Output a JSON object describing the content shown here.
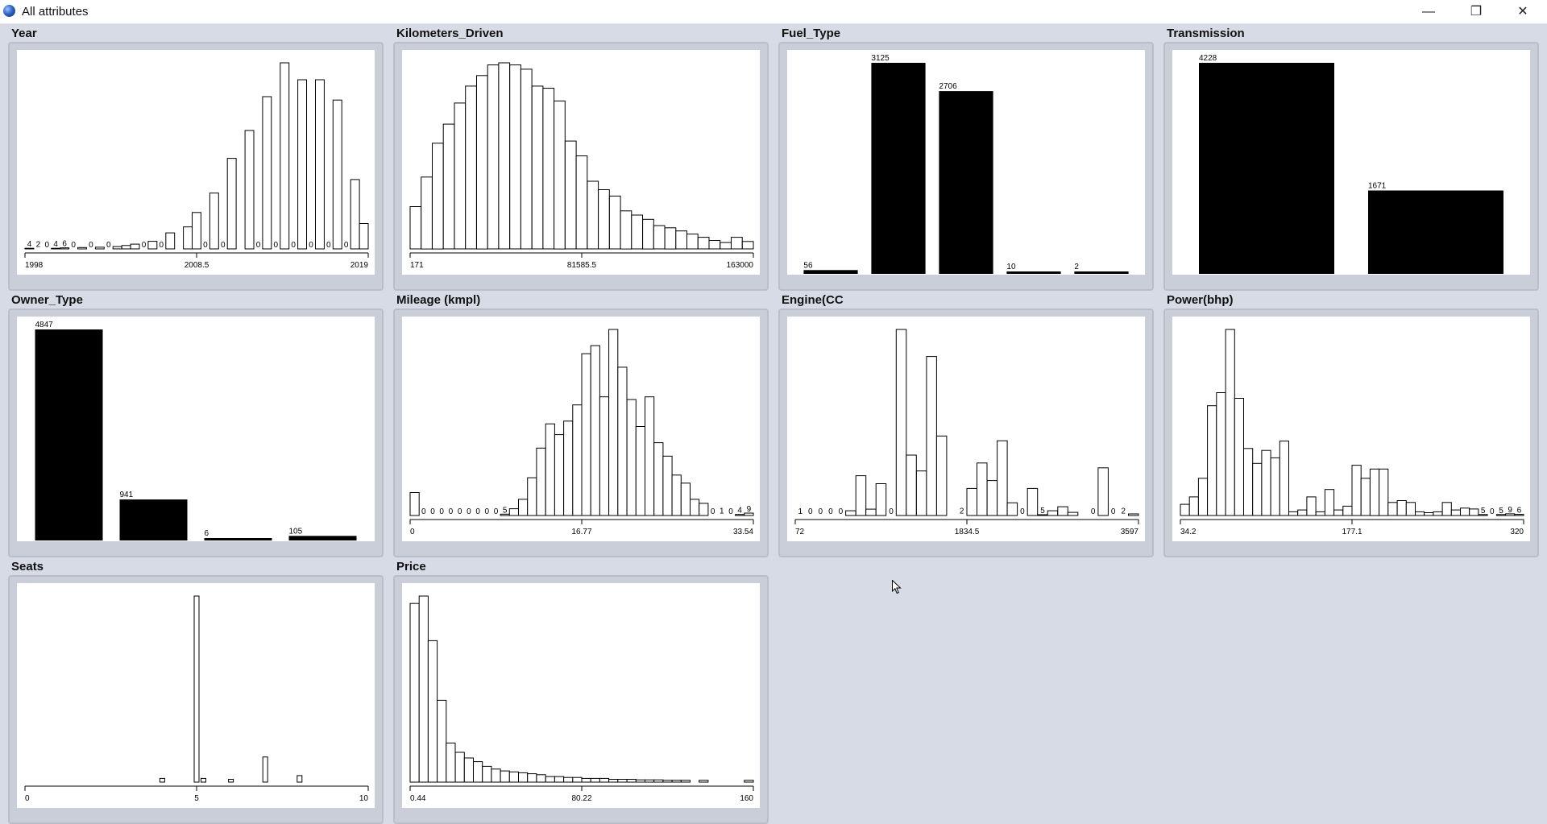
{
  "window": {
    "title": "All attributes",
    "buttons": {
      "minimize": "—",
      "maximize": "❐",
      "close": "✕"
    }
  },
  "chart_data": [
    {
      "name": "Year",
      "type": "histogram",
      "style": "outline",
      "xticks": [
        "1998",
        "2008.5",
        "2019"
      ],
      "values": [
        4,
        2,
        0,
        4,
        6,
        0,
        8,
        0,
        10,
        0,
        14,
        20,
        28,
        0,
        45,
        0,
        95,
        0,
        130,
        215,
        0,
        330,
        0,
        535,
        0,
        700,
        0,
        900,
        0,
        1100,
        0,
        1000,
        0,
        1000,
        0,
        880,
        0,
        410,
        150
      ],
      "labels": [
        "4",
        "2",
        "0",
        "4",
        "6",
        "0",
        "",
        "0",
        "",
        "0",
        "",
        "",
        "",
        "0",
        "",
        "0",
        "",
        "",
        "",
        "",
        "0",
        "",
        "0",
        "",
        "",
        "",
        "0",
        "",
        "0",
        "",
        "0",
        "",
        "0",
        "",
        "0",
        "",
        "0",
        "",
        ""
      ],
      "ymax": 1100
    },
    {
      "name": "Kilometers_Driven",
      "type": "histogram",
      "style": "outline",
      "xticks": [
        "171",
        "81585.5",
        "163000"
      ],
      "values": [
        200,
        340,
        500,
        590,
        690,
        770,
        820,
        870,
        880,
        870,
        850,
        770,
        760,
        700,
        510,
        440,
        320,
        280,
        250,
        180,
        160,
        140,
        110,
        100,
        85,
        70,
        55,
        40,
        30,
        55,
        35
      ],
      "ymax": 880
    },
    {
      "name": "Fuel_Type",
      "type": "bar",
      "style": "solid",
      "values": [
        56,
        3125,
        2706,
        10,
        2
      ],
      "labels": [
        "56",
        "3125",
        "2706",
        "10",
        "2"
      ],
      "ymax": 3125
    },
    {
      "name": "Transmission",
      "type": "bar",
      "style": "solid",
      "values": [
        4228,
        1671
      ],
      "labels": [
        "4228",
        "1671"
      ],
      "ymax": 4228
    },
    {
      "name": "Owner_Type",
      "type": "bar",
      "style": "solid",
      "values": [
        4847,
        941,
        6,
        105
      ],
      "labels": [
        "4847",
        "941",
        "6",
        "105"
      ],
      "ymax": 4847
    },
    {
      "name": "Mileage (kmpl)",
      "type": "histogram",
      "style": "outline",
      "xticks": [
        "0",
        "16.77",
        "33.54"
      ],
      "values": [
        85,
        0,
        0,
        0,
        0,
        0,
        0,
        0,
        0,
        0,
        5,
        25,
        60,
        140,
        250,
        340,
        300,
        350,
        410,
        600,
        630,
        440,
        690,
        550,
        430,
        330,
        440,
        270,
        220,
        150,
        120,
        60,
        45,
        0,
        1,
        0,
        4,
        9
      ],
      "labels": [
        "",
        "0",
        "0",
        "0",
        "0",
        "0",
        "0",
        "0",
        "0",
        "0",
        "5",
        "",
        "",
        "",
        "",
        "",
        "",
        "",
        "",
        "",
        "",
        "",
        "",
        "",
        "",
        "",
        "",
        "",
        "",
        "",
        "",
        "",
        "",
        "0",
        "1",
        "0",
        "4",
        "9"
      ],
      "ymax": 690
    },
    {
      "name": "Engine(CC",
      "type": "histogram",
      "style": "outline",
      "xticks": [
        "72",
        "1834.5",
        "3597"
      ],
      "values": [
        1,
        0,
        0,
        0,
        0,
        30,
        250,
        40,
        200,
        0,
        1170,
        380,
        280,
        1000,
        500,
        0,
        2,
        170,
        330,
        220,
        470,
        80,
        0,
        170,
        5,
        30,
        55,
        20,
        0,
        0,
        300,
        0,
        2,
        10
      ],
      "labels": [
        "1",
        "0",
        "0",
        "0",
        "0",
        "",
        "",
        "",
        "",
        "0",
        "",
        "",
        "",
        "",
        "",
        "",
        "2",
        "",
        "",
        "",
        "",
        "",
        "0",
        "",
        "5",
        "",
        "",
        "",
        "",
        "0",
        "",
        "0",
        "2",
        ""
      ],
      "ymax": 1170
    },
    {
      "name": "Power(bhp)",
      "type": "histogram",
      "style": "outline",
      "xticks": [
        "34.2",
        "177.1",
        "320"
      ],
      "values": [
        60,
        100,
        200,
        590,
        660,
        1000,
        630,
        360,
        280,
        350,
        310,
        400,
        20,
        30,
        100,
        20,
        140,
        30,
        50,
        270,
        200,
        250,
        250,
        70,
        80,
        70,
        20,
        15,
        20,
        70,
        30,
        40,
        35,
        5,
        0,
        5,
        9,
        6
      ],
      "labels": [
        "",
        "",
        "",
        "",
        "",
        "",
        "",
        "",
        "",
        "",
        "",
        "",
        "",
        "",
        "",
        "",
        "",
        "",
        "",
        "",
        "",
        "",
        "",
        "",
        "",
        "",
        "",
        "",
        "",
        "",
        "",
        "",
        "",
        "5",
        "0",
        "5",
        "9",
        "6"
      ],
      "ymax": 1000
    },
    {
      "name": "Seats",
      "type": "histogram",
      "style": "outline",
      "xticks": [
        "0",
        "5",
        "10"
      ],
      "x": [
        4,
        5,
        5.2,
        6,
        7,
        8
      ],
      "values": [
        20,
        1000,
        20,
        15,
        135,
        35
      ],
      "xrange": [
        0,
        10
      ],
      "ymax": 1000
    },
    {
      "name": "Price",
      "type": "histogram",
      "style": "outline",
      "xticks": [
        "0.44",
        "80.22",
        "160"
      ],
      "values": [
        960,
        1000,
        760,
        440,
        210,
        160,
        130,
        110,
        85,
        70,
        60,
        55,
        50,
        45,
        40,
        30,
        30,
        25,
        25,
        20,
        20,
        20,
        15,
        15,
        15,
        12,
        12,
        12,
        10,
        10,
        10,
        0,
        10,
        0,
        0,
        0,
        0,
        10
      ],
      "ymax": 1000
    }
  ]
}
